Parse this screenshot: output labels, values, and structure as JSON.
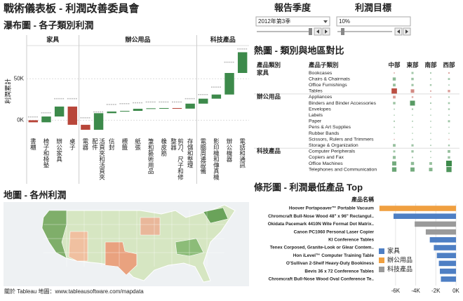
{
  "header": {
    "title": "戰術儀表板 - 利潤改善委員會"
  },
  "controls": [
    {
      "label": "報告季度",
      "value": "2012年第3季"
    },
    {
      "label": "利潤目標",
      "value": "10%"
    }
  ],
  "chart_data": [
    {
      "type": "waterfall",
      "title": "瀑布圖 - 各子類別利潤",
      "ylabel": "利潤累計",
      "positive_color": "#3d8a4b",
      "negative_color": "#b8463a",
      "target_color": "#bbbbbb",
      "groups": [
        {
          "name": "家具",
          "categories": [
            "書櫃",
            "椅子和椅墊",
            "辦公家具",
            "桌子"
          ],
          "values": [
            -2500,
            7000,
            12000,
            -22000
          ],
          "targets": [
            4000,
            9000,
            26000,
            26000
          ]
        },
        {
          "name": "辦公用品",
          "categories": [
            "電器",
            "活頁夾和活頁夾配件",
            "信封",
            "標籤",
            "紙張",
            "筆和藝術用品",
            "橡皮筋",
            "剪刀、尺子和修整器",
            "存儲和整理"
          ],
          "values": [
            -6000,
            20000,
            2000,
            800,
            2500,
            600,
            300,
            -700,
            6000
          ],
          "targets": [
            3000,
            10000,
            19000,
            20000,
            21000,
            22000,
            22000,
            22000,
            26000
          ]
        },
        {
          "name": "科技產品",
          "categories": [
            "電腦周邊設備",
            "影印機和傳真機",
            "辦公機器",
            "電話和通訊"
          ],
          "values": [
            6000,
            5000,
            26000,
            25000
          ],
          "targets": [
            31000,
            40000,
            70000,
            86000
          ]
        }
      ],
      "ylim": [
        -20000,
        90000
      ],
      "yticks": [
        {
          "value": 0,
          "label": "0K"
        },
        {
          "value": 50000,
          "label": "50K"
        }
      ],
      "grid": true
    },
    {
      "type": "heatmap",
      "title": "熱圖 - 類別與地區對比",
      "columns": [
        "產品類別",
        "產品子類別",
        "中部",
        "東部",
        "南部",
        "西部"
      ],
      "positive_color": "#3d8a4b",
      "negative_color": "#b8463a",
      "groups": [
        {
          "name": "家具",
          "rows": [
            "Bookcases",
            "Chairs & Chairmats",
            "Office Furnishings",
            "Tables"
          ],
          "values": [
            [
              -300,
              900,
              400,
              -500
            ],
            [
              2000,
              1200,
              300,
              800
            ],
            [
              1500,
              1000,
              600,
              300
            ],
            [
              -6000,
              -2500,
              -400,
              -1200
            ]
          ]
        },
        {
          "name": "辦公用品",
          "rows": [
            "Appliances",
            "Binders and Binder Accessories",
            "Envelopes",
            "Labels",
            "Paper",
            "Pens & Art Supplies",
            "Rubber Bands",
            "Scissors, Rulers and Trimmers",
            "Storage & Organization"
          ],
          "values": [
            [
              -1500,
              -600,
              -300,
              400
            ],
            [
              1200,
              5000,
              400,
              700
            ],
            [
              300,
              500,
              200,
              600
            ],
            [
              200,
              150,
              100,
              300
            ],
            [
              400,
              300,
              250,
              900
            ],
            [
              300,
              200,
              150,
              250
            ],
            [
              100,
              50,
              80,
              60
            ],
            [
              -200,
              150,
              100,
              -100
            ],
            [
              1500,
              1000,
              300,
              600
            ]
          ]
        },
        {
          "name": "科技產品",
          "rows": [
            "Computer Peripherals",
            "Copiers and Fax",
            "Office Machines",
            "Telephones and Communication"
          ],
          "values": [
            [
              900,
              1100,
              300,
              1500
            ],
            [
              1800,
              400,
              200,
              1200
            ],
            [
              3500,
              2000,
              1500,
              6500
            ],
            [
              4000,
              3500,
              2500,
              5500
            ]
          ]
        }
      ]
    },
    {
      "type": "map",
      "title": "地圖 - 各州利潤",
      "note": "關於 Tableau 地圖：www.tableausoftware.com/mapdata"
    },
    {
      "type": "hbar",
      "title": "條形圖 - 利潤最低產品 Top",
      "ylabel": "產品名稱",
      "categories": [
        "Hoover Portapoaver™ Portable Vacuum",
        "Chromcraft Bull-Nose Wood 48\" x 96\" Rectangul..",
        "Okidata Pacemark 4410N Wite Format Dot Matrix..",
        "Canon PC1060 Personal Laser Copier",
        "KI Conference Tables",
        "Tenex Corposed, Granite-Look or Glear Contem..",
        "Hon iLevel™ Computer Training Table",
        "O'Sullivan 2-Shelf Heavy-Duty Bookiness",
        "Bevis 36 x 72 Conference Tables",
        "Chromcraft Bull-Nose Wood Oval Conference Te.."
      ],
      "series": [
        {
          "name": "家具",
          "color": "#4e7fc4",
          "values": [
            null,
            -6200,
            null,
            null,
            -2600,
            -2200,
            -1900,
            -1700,
            -1600,
            -1500
          ]
        },
        {
          "name": "辦公用品",
          "color": "#f0a040",
          "values": [
            -7600,
            null,
            null,
            null,
            null,
            null,
            null,
            null,
            null,
            null
          ]
        },
        {
          "name": "科技產品",
          "color": "#9a9a9a",
          "values": [
            null,
            null,
            -4100,
            -3000,
            null,
            null,
            null,
            null,
            null,
            null
          ]
        }
      ],
      "xlim": [
        -7800,
        0
      ],
      "xticks": [
        {
          "value": -6000,
          "label": "-6K"
        },
        {
          "value": -4000,
          "label": "-4K"
        },
        {
          "value": -2000,
          "label": "-2K"
        },
        {
          "value": 0,
          "label": "0K"
        }
      ],
      "grid": true
    }
  ]
}
